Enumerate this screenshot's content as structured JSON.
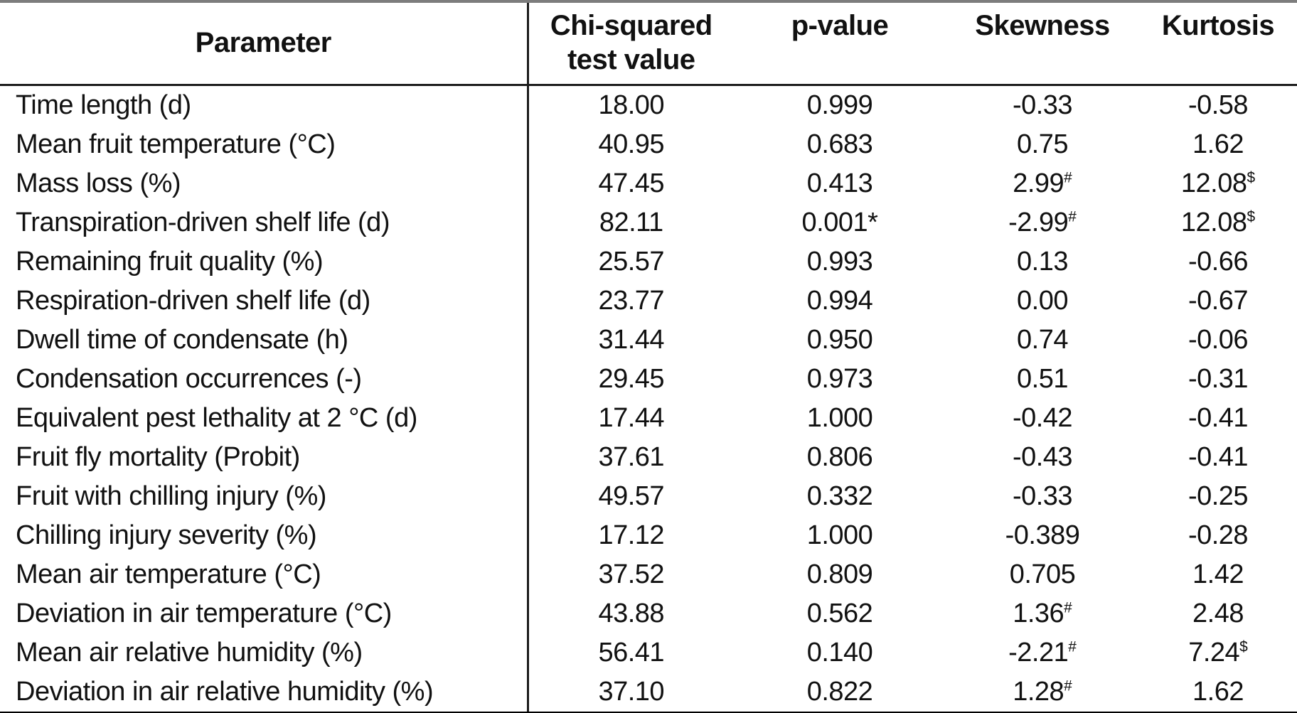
{
  "table": {
    "columns": [
      {
        "label": "Parameter"
      },
      {
        "label": "Chi-squared test value"
      },
      {
        "label": "p-value"
      },
      {
        "label": "Skewness"
      },
      {
        "label": "Kurtosis"
      }
    ],
    "rows": [
      [
        "Time length (d)",
        "18.00",
        "0.999",
        "-0.33",
        "-0.58"
      ],
      [
        "Mean fruit temperature (°C)",
        "40.95",
        "0.683",
        "0.75",
        "1.62"
      ],
      [
        "Mass loss (%)",
        "47.45",
        "0.413",
        "2.99^#",
        "12.08^$"
      ],
      [
        "Transpiration-driven shelf life (d)",
        "82.11",
        "0.001*",
        "-2.99^#",
        "12.08^$"
      ],
      [
        "Remaining fruit quality (%)",
        "25.57",
        "0.993",
        "0.13",
        "-0.66"
      ],
      [
        "Respiration-driven shelf life (d)",
        "23.77",
        "0.994",
        "0.00",
        "-0.67"
      ],
      [
        "Dwell time of condensate (h)",
        "31.44",
        "0.950",
        "0.74",
        "-0.06"
      ],
      [
        "Condensation occurrences (-)",
        "29.45",
        "0.973",
        "0.51",
        "-0.31"
      ],
      [
        "Equivalent pest lethality at 2 °C (d)",
        "17.44",
        "1.000",
        "-0.42",
        "-0.41"
      ],
      [
        "Fruit fly mortality (Probit)",
        "37.61",
        "0.806",
        "-0.43",
        "-0.41"
      ],
      [
        "Fruit with chilling injury (%)",
        "49.57",
        "0.332",
        "-0.33",
        "-0.25"
      ],
      [
        "Chilling injury severity (%)",
        "17.12",
        "1.000",
        "-0.389",
        "-0.28"
      ],
      [
        "Mean air temperature (°C)",
        "37.52",
        "0.809",
        "0.705",
        "1.42"
      ],
      [
        "Deviation in air temperature (°C)",
        "43.88",
        "0.562",
        "1.36^#",
        "2.48"
      ],
      [
        "Mean air relative humidity (%)",
        "56.41",
        "0.140",
        "-2.21^#",
        "7.24^$"
      ],
      [
        "Deviation in air relative humidity (%)",
        "37.10",
        "0.822",
        "1.28^#",
        "1.62"
      ]
    ]
  }
}
